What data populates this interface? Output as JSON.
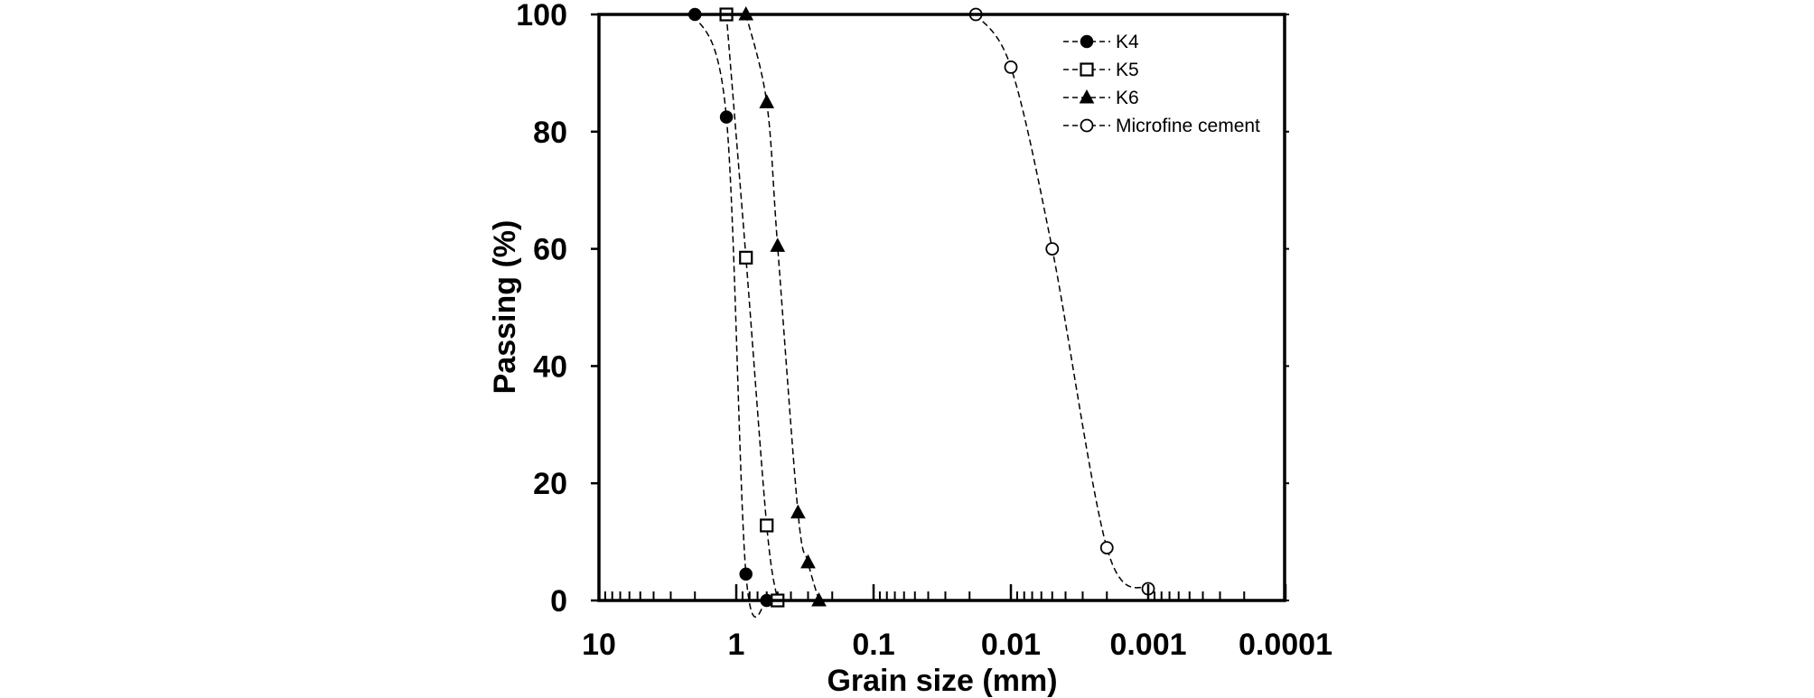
{
  "chart_data": {
    "type": "scatter",
    "title": "",
    "xlabel": "Grain size (mm)",
    "ylabel": "Passing (%)",
    "xscale": "log",
    "xaxis_reversed": true,
    "xlim": [
      10,
      0.0001
    ],
    "ylim": [
      0,
      100
    ],
    "xticks": [
      10,
      1,
      0.1,
      0.01,
      0.001,
      0.0001
    ],
    "xtick_labels": [
      "10",
      "1",
      "0.1",
      "0.01",
      "0.001",
      "0.0001"
    ],
    "yticks": [
      0,
      20,
      40,
      60,
      80,
      100
    ],
    "ytick_labels": [
      "0",
      "20",
      "40",
      "60",
      "80",
      "100"
    ],
    "grid": false,
    "legend_position": "top-right",
    "series": [
      {
        "name": "K4",
        "marker": "filled-circle",
        "line": "dashed",
        "x": [
          2,
          1.18,
          0.85,
          0.6
        ],
        "y": [
          100,
          82.5,
          4.5,
          0
        ]
      },
      {
        "name": "K5",
        "marker": "open-square",
        "line": "dashed",
        "x": [
          1.18,
          0.85,
          0.6,
          0.5
        ],
        "y": [
          100,
          58.5,
          12.8,
          0
        ]
      },
      {
        "name": "K6",
        "marker": "filled-triangle",
        "line": "dashed",
        "x": [
          0.85,
          0.6,
          0.5,
          0.355,
          0.3,
          0.25
        ],
        "y": [
          100,
          85,
          60.5,
          15,
          6.5,
          0
        ]
      },
      {
        "name": "Microfine cement",
        "marker": "open-circle",
        "line": "dashed",
        "x": [
          0.018,
          0.01,
          0.005,
          0.002,
          0.001
        ],
        "y": [
          100,
          91,
          60,
          9,
          2
        ]
      }
    ]
  }
}
